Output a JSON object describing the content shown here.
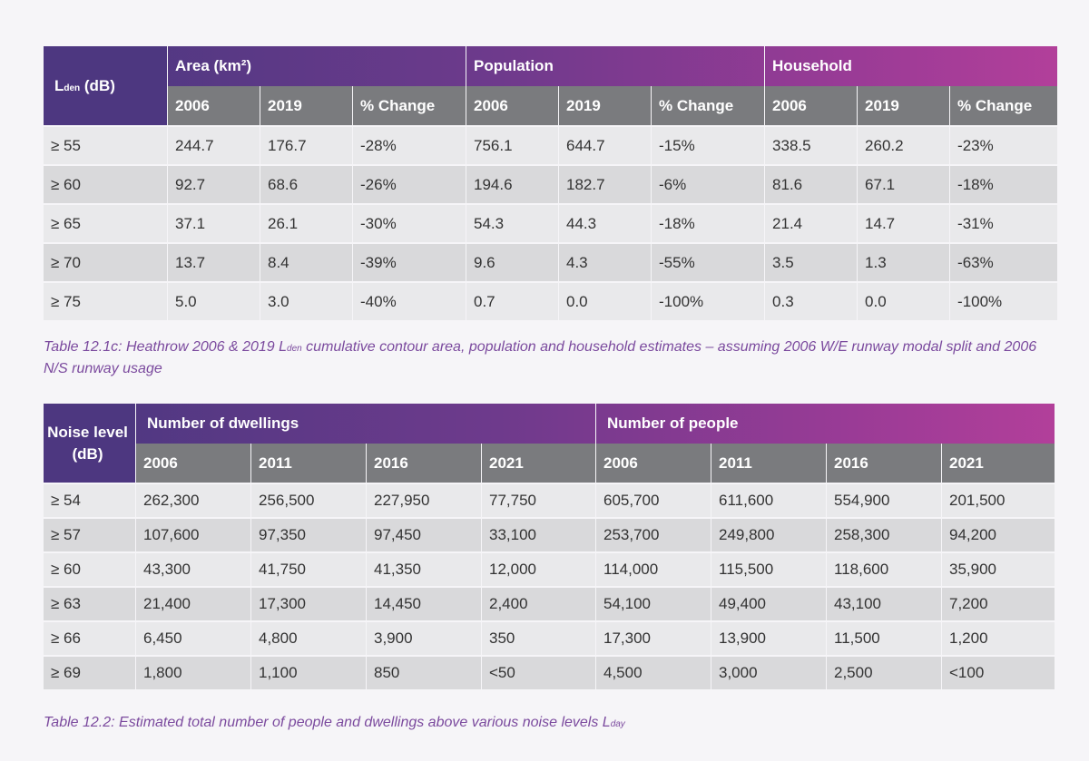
{
  "table1": {
    "corner": "den",
    "corner_prefix": "L",
    "corner_suffix": " (dB)",
    "groups": [
      "Area (km²)",
      "Population",
      "Household"
    ],
    "subheaders": [
      "2006",
      "2019",
      "% Change",
      "2006",
      "2019",
      "% Change",
      "2006",
      "2019",
      "% Change"
    ],
    "rows": [
      {
        "level": "≥ 55",
        "cells": [
          "244.7",
          "176.7",
          "-28%",
          "756.1",
          "644.7",
          "-15%",
          "338.5",
          "260.2",
          "-23%"
        ]
      },
      {
        "level": "≥ 60",
        "cells": [
          "92.7",
          "68.6",
          "-26%",
          "194.6",
          "182.7",
          "-6%",
          "81.6",
          "67.1",
          "-18%"
        ]
      },
      {
        "level": "≥ 65",
        "cells": [
          "37.1",
          "26.1",
          "-30%",
          "54.3",
          "44.3",
          "-18%",
          "21.4",
          "14.7",
          "-31%"
        ]
      },
      {
        "level": "≥ 70",
        "cells": [
          "13.7",
          "8.4",
          "-39%",
          "9.6",
          "4.3",
          "-55%",
          "3.5",
          "1.3",
          "-63%"
        ]
      },
      {
        "level": "≥ 75",
        "cells": [
          "5.0",
          "3.0",
          "-40%",
          "0.7",
          "0.0",
          "-100%",
          "0.3",
          "0.0",
          "-100%"
        ]
      }
    ],
    "caption_a": "Table 12.1c: Heathrow 2006 & 2019 L",
    "caption_sub": "den",
    "caption_b": " cumulative contour area, population and household estimates – assuming 2006 W/E runway modal split and 2006 N/S runway usage"
  },
  "table2": {
    "corner": "Noise level (dB)",
    "groups": [
      "Number of dwellings",
      "Number of people"
    ],
    "subheaders": [
      "2006",
      "2011",
      "2016",
      "2021",
      "2006",
      "2011",
      "2016",
      "2021"
    ],
    "rows": [
      {
        "level": "≥ 54",
        "cells": [
          "262,300",
          "256,500",
          "227,950",
          "77,750",
          "605,700",
          "611,600",
          "554,900",
          "201,500"
        ]
      },
      {
        "level": "≥ 57",
        "cells": [
          "107,600",
          "97,350",
          "97,450",
          "33,100",
          "253,700",
          "249,800",
          "258,300",
          "94,200"
        ]
      },
      {
        "level": "≥ 60",
        "cells": [
          "43,300",
          "41,750",
          "41,350",
          "12,000",
          "114,000",
          "115,500",
          "118,600",
          "35,900"
        ]
      },
      {
        "level": "≥ 63",
        "cells": [
          "21,400",
          "17,300",
          "14,450",
          "2,400",
          "54,100",
          "49,400",
          "43,100",
          "7,200"
        ]
      },
      {
        "level": "≥ 66",
        "cells": [
          "6,450",
          "4,800",
          "3,900",
          "350",
          "17,300",
          "13,900",
          "11,500",
          "1,200"
        ]
      },
      {
        "level": "≥ 69",
        "cells": [
          "1,800",
          "1,100",
          "850",
          "<50",
          "4,500",
          "3,000",
          "2,500",
          "<100"
        ]
      }
    ],
    "caption_a": "Table 12.2: Estimated total number of people and dwellings above various noise levels L",
    "caption_sub": "day"
  }
}
